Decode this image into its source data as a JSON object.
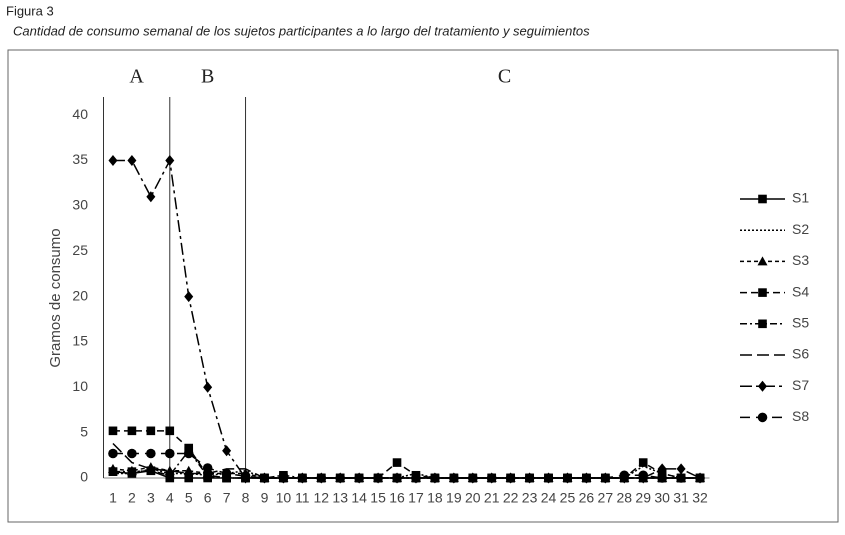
{
  "chart_data": {
    "type": "line",
    "figure_label": "Figura 3",
    "title": "Cantidad de consumo semanal de los sujetos participantes a lo largo del tratamiento y seguimientos",
    "y_label": "Gramos de consumo",
    "x": [
      1,
      2,
      3,
      4,
      5,
      6,
      7,
      8,
      9,
      10,
      11,
      12,
      13,
      14,
      15,
      16,
      17,
      18,
      19,
      20,
      21,
      22,
      23,
      24,
      25,
      26,
      27,
      28,
      29,
      30,
      31,
      32
    ],
    "xlim": [
      0.5,
      32.5
    ],
    "xticks": [
      1,
      2,
      3,
      4,
      5,
      6,
      7,
      8,
      9,
      10,
      11,
      12,
      13,
      14,
      15,
      16,
      17,
      18,
      19,
      20,
      21,
      22,
      23,
      24,
      25,
      26,
      27,
      28,
      29,
      30,
      31,
      32
    ],
    "ylim": [
      0,
      42
    ],
    "yticks": [
      0,
      5,
      10,
      15,
      20,
      25,
      30,
      35,
      40
    ],
    "grid": false,
    "legend": "right",
    "phases": [
      {
        "label": "A",
        "start": 0.5,
        "end": 4
      },
      {
        "label": "B",
        "start": 4,
        "end": 8
      },
      {
        "label": "C",
        "start": 8,
        "end": 32.5
      }
    ],
    "series": [
      {
        "name": "S1",
        "color": "#000000",
        "dash": "none",
        "marker": "square",
        "values": [
          0.7,
          0.5,
          0.8,
          0,
          0,
          0,
          0,
          0,
          0,
          0,
          0,
          0,
          0,
          0,
          0,
          0,
          0,
          0,
          0,
          0,
          0,
          0,
          0,
          0,
          0,
          0,
          0,
          0,
          0,
          0,
          0,
          0
        ]
      },
      {
        "name": "S2",
        "color": "#000000",
        "dash": "2 2",
        "marker": "none",
        "values": [
          0.5,
          0.5,
          1,
          0.5,
          0.5,
          0.3,
          0.5,
          0.8,
          0,
          0,
          0,
          0,
          0,
          0,
          0,
          0,
          0.5,
          0,
          0,
          0,
          0,
          0,
          0,
          0,
          0,
          0,
          0,
          0,
          1.3,
          0.5,
          0,
          0
        ]
      },
      {
        "name": "S3",
        "color": "#000000",
        "dash": "4 3",
        "marker": "triangle",
        "values": [
          1,
          0.8,
          1.2,
          0.8,
          0.8,
          0.5,
          0.5,
          0.5,
          0,
          0,
          0,
          0,
          0,
          0,
          0,
          0,
          0,
          0,
          0,
          0,
          0,
          0,
          0,
          0,
          0,
          0,
          0,
          0,
          0,
          0,
          0,
          0
        ]
      },
      {
        "name": "S4",
        "color": "#000000",
        "dash": "7 4",
        "marker": "square",
        "values": [
          5.2,
          5.2,
          5.2,
          5.2,
          3.3,
          0.3,
          0,
          0,
          0,
          0,
          0,
          0,
          0,
          0,
          0,
          1.7,
          0.3,
          0,
          0,
          0,
          0,
          0,
          0,
          0,
          0,
          0,
          0,
          0,
          1.7,
          0.5,
          0,
          0
        ]
      },
      {
        "name": "S5",
        "color": "#000000",
        "dash": "7 3 2 3",
        "marker": "square",
        "values": [
          0.7,
          0.7,
          0.8,
          0.3,
          3,
          0.2,
          0,
          0,
          0,
          0.3,
          0,
          0,
          0,
          0,
          0,
          0,
          0,
          0,
          0,
          0,
          0,
          0,
          0,
          0,
          0,
          0,
          0,
          0,
          0,
          0,
          0,
          0
        ]
      },
      {
        "name": "S6",
        "color": "#000000",
        "dash": "12 5",
        "marker": "none",
        "values": [
          3.8,
          1.7,
          1,
          0.8,
          0.5,
          0.5,
          1,
          1,
          0,
          0,
          0,
          0,
          0,
          0,
          0,
          0,
          0,
          0,
          0,
          0,
          0,
          0,
          0,
          0,
          0,
          0,
          0,
          0,
          0,
          0,
          0,
          0
        ]
      },
      {
        "name": "S7",
        "color": "#000000",
        "dash": "12 4 3 4",
        "marker": "diamond",
        "values": [
          35,
          35,
          31,
          35,
          20,
          10,
          3,
          0,
          0,
          0,
          0,
          0,
          0,
          0,
          0,
          0,
          0,
          0,
          0,
          0,
          0,
          0,
          0,
          0,
          0,
          0,
          0,
          0,
          0,
          1,
          1,
          0
        ]
      },
      {
        "name": "S8",
        "color": "#000000",
        "dash": "10 6",
        "marker": "circle",
        "values": [
          2.7,
          2.7,
          2.7,
          2.7,
          2.7,
          1.1,
          0.5,
          0.2,
          0,
          0,
          0,
          0,
          0,
          0,
          0,
          0,
          0,
          0,
          0,
          0,
          0,
          0,
          0,
          0,
          0,
          0,
          0,
          0.3,
          0.3,
          0,
          0,
          0
        ]
      }
    ]
  }
}
